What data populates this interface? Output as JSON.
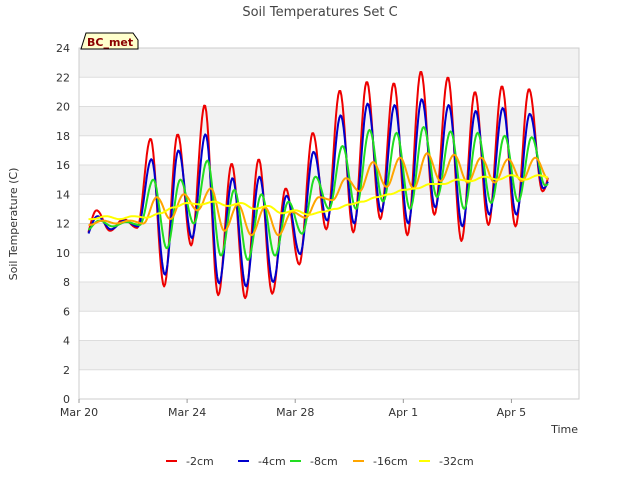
{
  "chart_data": {
    "type": "line",
    "title": "Soil Temperatures Set C",
    "xlabel": "Time",
    "ylabel": "Soil Temperature (C)",
    "badge": "BC_met",
    "xlim_days": [
      0,
      18.5
    ],
    "ylim": [
      0,
      24
    ],
    "y_ticks": [
      0,
      2,
      4,
      6,
      8,
      10,
      12,
      14,
      16,
      18,
      20,
      22,
      24
    ],
    "x_ticks": [
      {
        "label": "Mar 20",
        "day": 0
      },
      {
        "label": "Mar 24",
        "day": 4
      },
      {
        "label": "Mar 28",
        "day": 8
      },
      {
        "label": "Apr 1",
        "day": 12
      },
      {
        "label": "Apr 5",
        "day": 16
      }
    ],
    "grid": true,
    "legend_position": "bottom",
    "series": [
      {
        "name": "-2cm",
        "color": "#ee0000",
        "peak_phase": 0.65,
        "mins": [
          10.6,
          11.5,
          11.7,
          7.7,
          10.5,
          7.1,
          6.9,
          7.2,
          9.2,
          11.6,
          11.4,
          12.3,
          11.2,
          12.6,
          10.8,
          11.9,
          11.8,
          14.2
        ],
        "maxs": [
          12.9,
          12.3,
          17.8,
          18.1,
          20.1,
          16.1,
          16.4,
          14.4,
          18.2,
          21.1,
          21.7,
          21.6,
          22.4,
          22.0,
          21.0,
          21.4,
          21.2,
          16.9
        ]
      },
      {
        "name": "-4cm",
        "color": "#0000cc",
        "peak_phase": 0.68,
        "mins": [
          10.9,
          11.6,
          11.8,
          8.5,
          11.0,
          7.9,
          7.7,
          8.0,
          9.9,
          12.2,
          12.0,
          12.8,
          12.0,
          13.1,
          11.8,
          12.6,
          12.6,
          14.4
        ],
        "maxs": [
          12.5,
          12.2,
          16.4,
          17.0,
          18.1,
          15.1,
          15.2,
          13.9,
          16.9,
          19.4,
          20.2,
          20.1,
          20.5,
          20.1,
          19.7,
          19.9,
          19.5,
          16.2
        ]
      },
      {
        "name": "-8cm",
        "color": "#22dd22",
        "peak_phase": 0.75,
        "mins": [
          11.5,
          11.8,
          11.9,
          10.3,
          12.0,
          9.8,
          9.5,
          9.8,
          11.3,
          13.0,
          13.0,
          13.5,
          13.0,
          13.8,
          13.0,
          13.4,
          13.5,
          14.6
        ],
        "maxs": [
          12.2,
          12.1,
          15.0,
          15.0,
          16.3,
          14.3,
          14.0,
          13.5,
          15.2,
          17.3,
          18.4,
          18.2,
          18.6,
          18.3,
          18.2,
          18.0,
          17.9,
          15.7
        ]
      },
      {
        "name": "-16cm",
        "color": "#ffa500",
        "peak_phase": 0.88,
        "mins": [
          11.9,
          12.0,
          12.0,
          12.3,
          12.9,
          11.5,
          11.2,
          11.2,
          12.4,
          13.6,
          14.2,
          14.5,
          14.4,
          14.9,
          14.8,
          14.8,
          14.9,
          15.0
        ],
        "maxs": [
          12.2,
          12.2,
          13.8,
          14.0,
          14.4,
          13.3,
          13.1,
          12.8,
          13.8,
          15.1,
          16.2,
          16.5,
          16.8,
          16.7,
          16.5,
          16.4,
          16.5,
          15.5
        ]
      },
      {
        "name": "-32cm",
        "color": "#ffff00",
        "peak_phase": 1.0,
        "mins": [
          12.3,
          12.3,
          12.4,
          13.1,
          13.3,
          13.2,
          13.0,
          12.7,
          12.6,
          13.0,
          13.5,
          14.0,
          14.4,
          14.7,
          14.9,
          15.0,
          15.0,
          15.1
        ],
        "maxs": [
          12.5,
          12.5,
          12.7,
          13.4,
          13.5,
          13.4,
          13.2,
          12.9,
          12.8,
          13.3,
          13.8,
          14.3,
          14.7,
          15.0,
          15.2,
          15.3,
          15.3,
          15.3
        ]
      }
    ]
  }
}
